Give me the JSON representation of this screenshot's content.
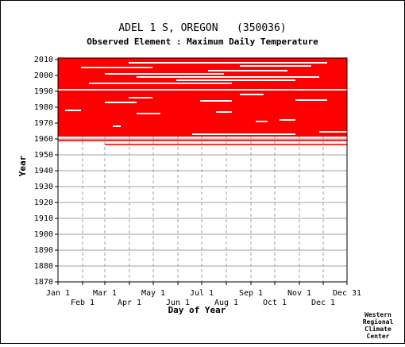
{
  "chart_data": {
    "type": "heatmap",
    "title": "ADEL 1 S, OREGON   (350036)",
    "subtitle": "Observed Element : Maximum Daily Temperature",
    "xlabel": "Day of Year",
    "ylabel": "Year",
    "xlim": [
      1,
      365
    ],
    "ylim": [
      1870,
      2011
    ],
    "y_ticks": [
      1870,
      1880,
      1890,
      1900,
      1910,
      1920,
      1930,
      1940,
      1950,
      1960,
      1970,
      1980,
      1990,
      2000,
      2010
    ],
    "x_ticks": [
      {
        "label": "Jan 1",
        "day": 1,
        "row": 0
      },
      {
        "label": "Feb 1",
        "day": 32,
        "row": 1
      },
      {
        "label": "Mar 1",
        "day": 60,
        "row": 0
      },
      {
        "label": "Apr 1",
        "day": 91,
        "row": 1
      },
      {
        "label": "May 1",
        "day": 121,
        "row": 0
      },
      {
        "label": "Jun 1",
        "day": 152,
        "row": 1
      },
      {
        "label": "Jul 1",
        "day": 182,
        "row": 0
      },
      {
        "label": "Aug 1",
        "day": 213,
        "row": 1
      },
      {
        "label": "Sep 1",
        "day": 244,
        "row": 0
      },
      {
        "label": "Oct 1",
        "day": 274,
        "row": 1
      },
      {
        "label": "Nov 1",
        "day": 305,
        "row": 0
      },
      {
        "label": "Dec 1",
        "day": 335,
        "row": 1
      },
      {
        "label": "Dec 31",
        "day": 365,
        "row": 0
      }
    ],
    "data_color": "#ff0000",
    "grid": true,
    "observed_periods": [
      {
        "year_start": 1956.2,
        "year_end": 1957.0,
        "day_start": 60,
        "day_end": 365
      },
      {
        "year_start": 1958.7,
        "year_end": 1959.6,
        "day_start": 1,
        "day_end": 365
      },
      {
        "year_start": 1961.5,
        "year_end": 2011.0,
        "day_start": 1,
        "day_end": 365
      }
    ],
    "missing_periods": [
      {
        "year": 1963,
        "day_start": 170,
        "day_end": 300
      },
      {
        "year": 1964.5,
        "day_start": 330,
        "day_end": 365
      },
      {
        "year": 1968,
        "day_start": 70,
        "day_end": 80
      },
      {
        "year": 1971,
        "day_start": 250,
        "day_end": 265
      },
      {
        "year": 1972,
        "day_start": 280,
        "day_end": 300
      },
      {
        "year": 1976,
        "day_start": 100,
        "day_end": 130
      },
      {
        "year": 1977,
        "day_start": 200,
        "day_end": 220
      },
      {
        "year": 1978,
        "day_start": 10,
        "day_end": 30
      },
      {
        "year": 1983,
        "day_start": 60,
        "day_end": 100
      },
      {
        "year": 1984,
        "day_start": 180,
        "day_end": 220
      },
      {
        "year": 1984.5,
        "day_start": 300,
        "day_end": 340
      },
      {
        "year": 1986,
        "day_start": 90,
        "day_end": 120
      },
      {
        "year": 1988,
        "day_start": 230,
        "day_end": 260
      },
      {
        "year": 1991,
        "day_start": 1,
        "day_end": 365
      },
      {
        "year": 1995,
        "day_start": 40,
        "day_end": 220
      },
      {
        "year": 1997,
        "day_start": 150,
        "day_end": 300
      },
      {
        "year": 1999,
        "day_start": 100,
        "day_end": 330
      },
      {
        "year": 2001,
        "day_start": 60,
        "day_end": 210
      },
      {
        "year": 2003,
        "day_start": 190,
        "day_end": 290
      },
      {
        "year": 2005,
        "day_start": 30,
        "day_end": 120
      },
      {
        "year": 2006,
        "day_start": 230,
        "day_end": 320
      },
      {
        "year": 2008,
        "day_start": 90,
        "day_end": 340
      }
    ]
  },
  "credit": [
    "Western",
    "Regional",
    "Climate",
    "Center"
  ]
}
